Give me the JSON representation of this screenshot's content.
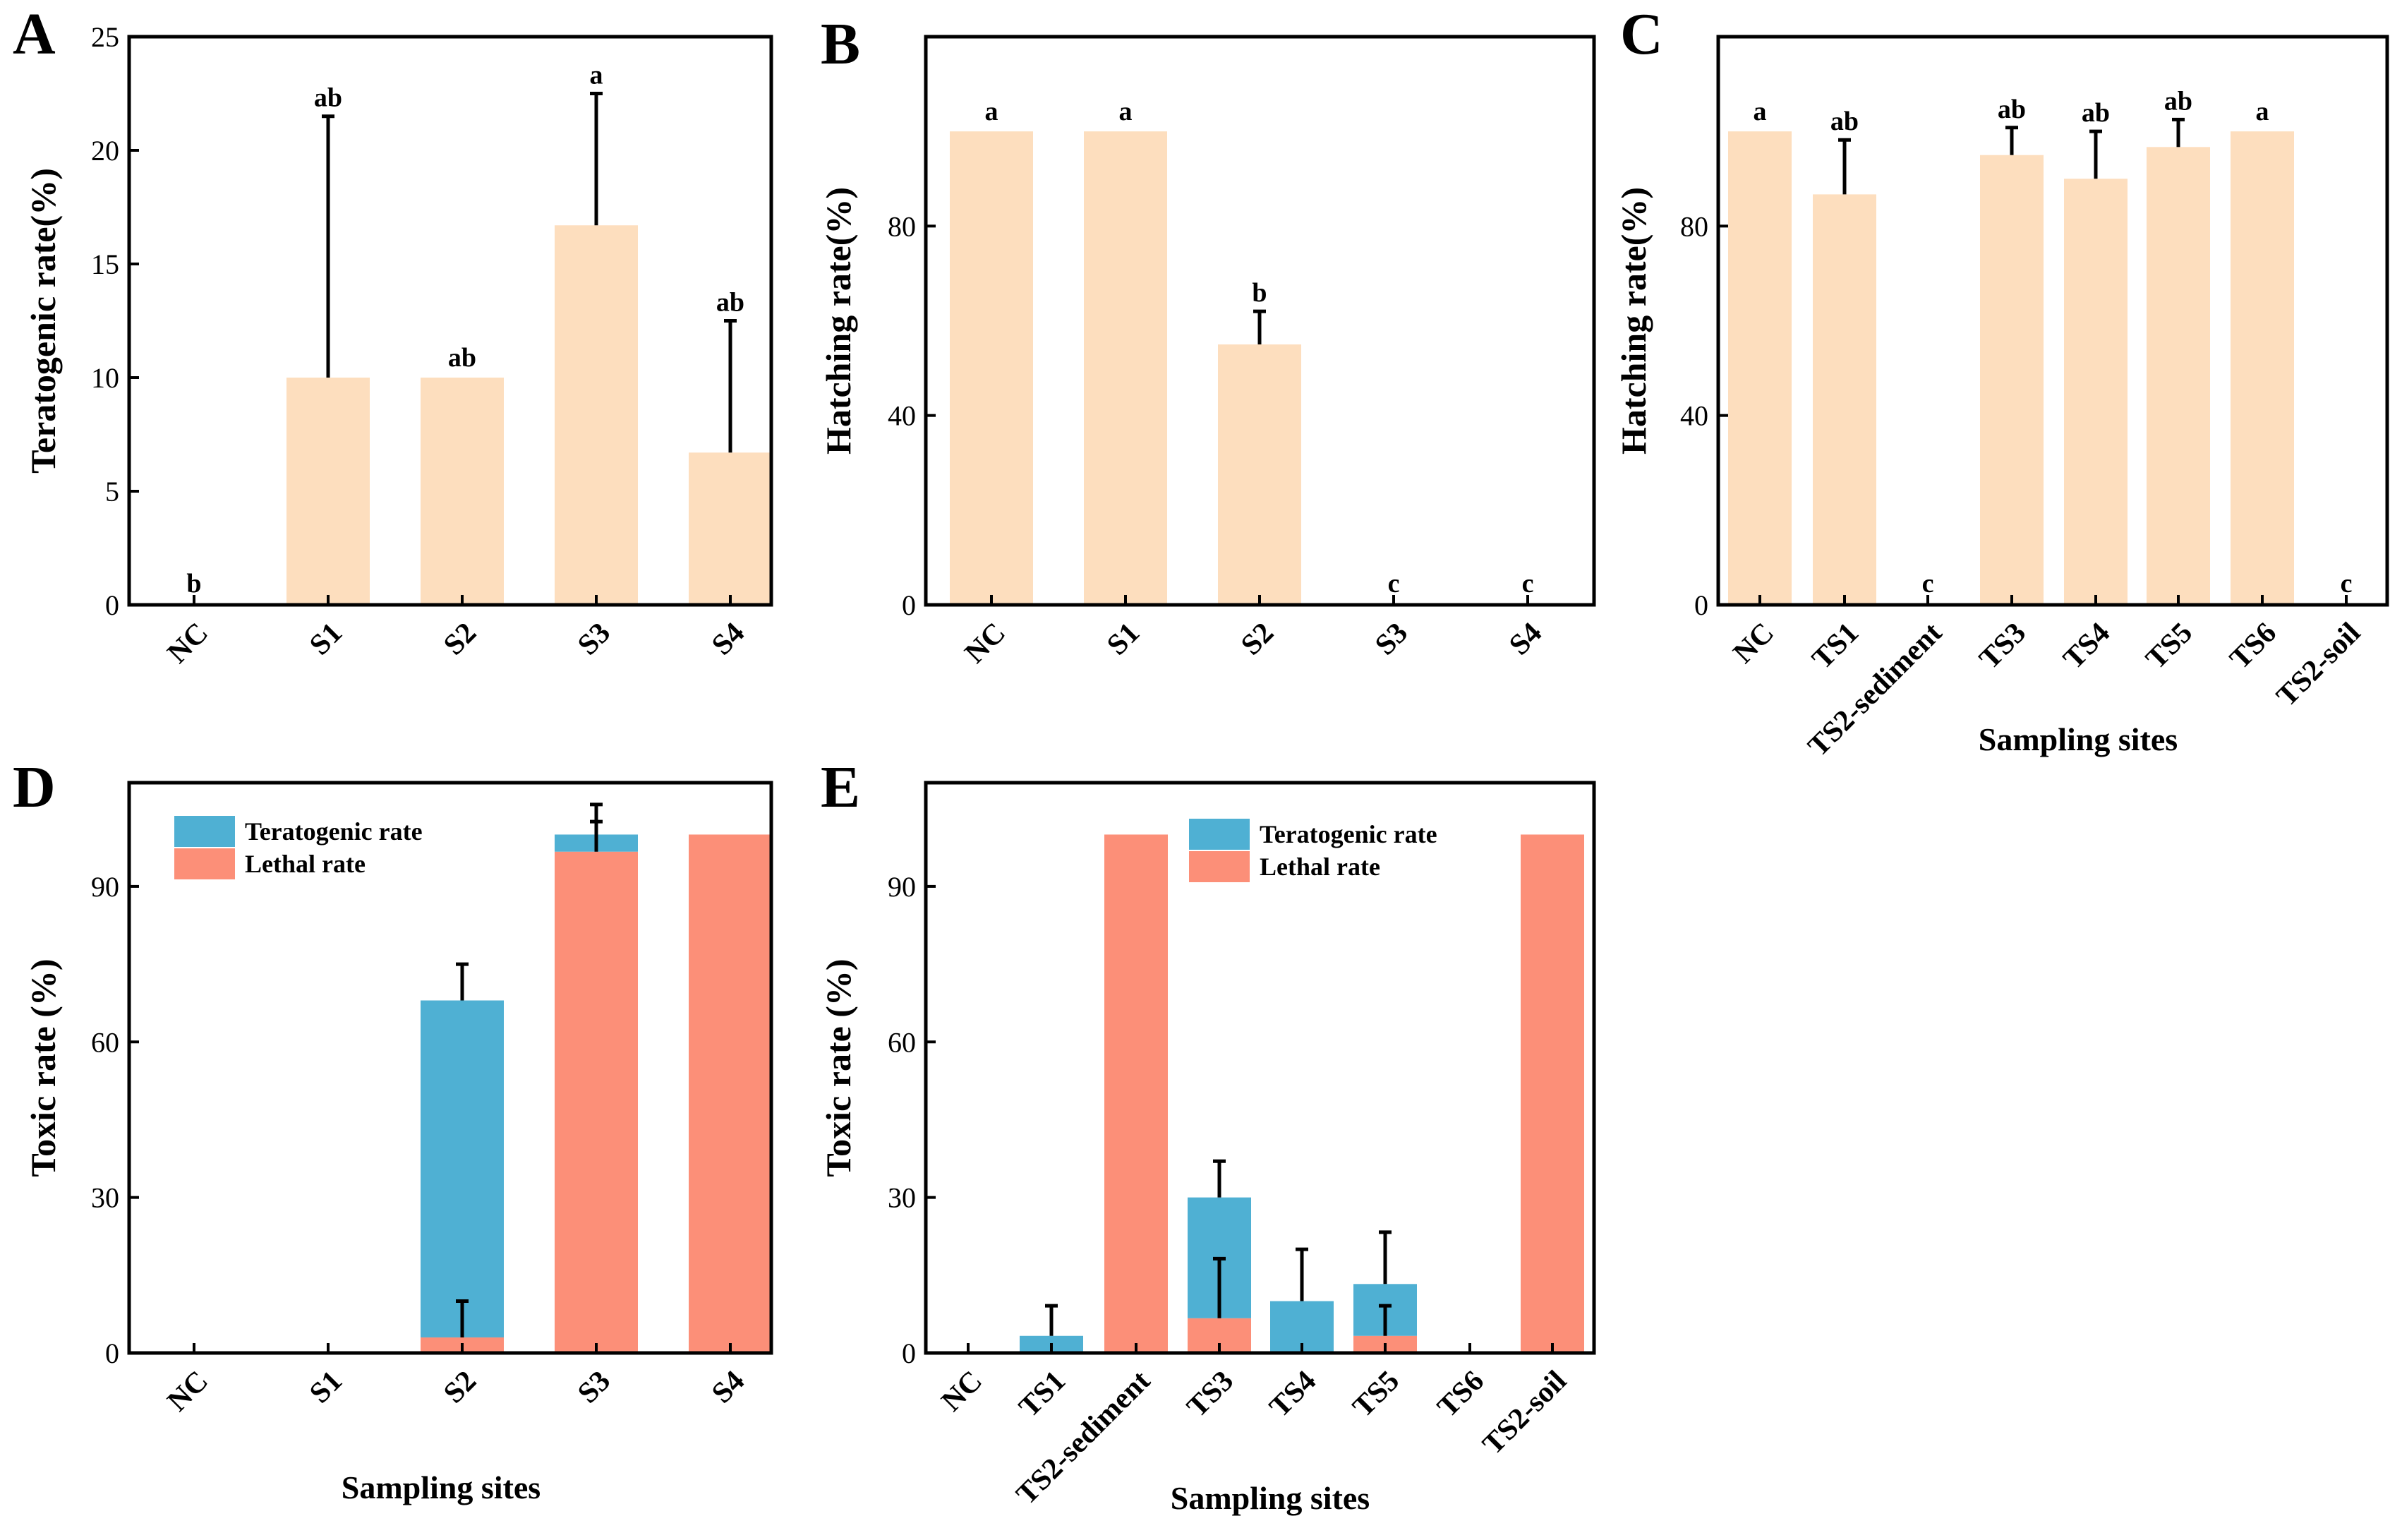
{
  "colors": {
    "beige": "#FDDEBE",
    "teratogenic": "#4FB0D3",
    "lethal": "#FC8F78",
    "axis": "#000000",
    "text": "#000000"
  },
  "chart_data": [
    {
      "panel": "A",
      "type": "bar",
      "categories": [
        "NC",
        "S1",
        "S2",
        "S3",
        "S4"
      ],
      "values": [
        0,
        10,
        10,
        16.7,
        6.7
      ],
      "errors": [
        0,
        11.5,
        0,
        5.8,
        5.8
      ],
      "sig_letters": [
        "b",
        "ab",
        "ab",
        "a",
        "ab"
      ],
      "ylabel": "Teratogenic rate(%)",
      "xlabel": "",
      "ylim": [
        0,
        25
      ],
      "yticks": [
        0,
        5,
        10,
        15,
        20,
        25
      ]
    },
    {
      "panel": "B",
      "type": "bar",
      "categories": [
        "NC",
        "S1",
        "S2",
        "S3",
        "S4"
      ],
      "values": [
        100,
        100,
        55,
        0,
        0
      ],
      "errors": [
        0,
        0,
        7,
        0,
        0
      ],
      "sig_letters": [
        "a",
        "a",
        "b",
        "c",
        "c"
      ],
      "ylabel": "Hatching rate(%)",
      "xlabel": "",
      "ylim": [
        0,
        120
      ],
      "yticks": [
        0,
        40,
        80
      ]
    },
    {
      "panel": "C",
      "type": "bar",
      "categories": [
        "NC",
        "TS1",
        "TS2-sediment",
        "TS3",
        "TS4",
        "TS5",
        "TS6",
        "TS2-soil"
      ],
      "values": [
        100,
        86.7,
        0,
        95,
        90,
        96.7,
        100,
        0
      ],
      "errors": [
        0,
        11.5,
        0,
        5.8,
        10,
        5.8,
        0,
        0
      ],
      "sig_letters": [
        "a",
        "ab",
        "c",
        "ab",
        "ab",
        "ab",
        "a",
        "c"
      ],
      "ylabel": "Hatching rate(%)",
      "xlabel": "Sampling sites",
      "ylim": [
        0,
        120
      ],
      "yticks": [
        0,
        40,
        80
      ]
    },
    {
      "panel": "D",
      "type": "bar",
      "stacked": true,
      "categories": [
        "NC",
        "S1",
        "S2",
        "S3",
        "S4"
      ],
      "series": [
        {
          "name": "Lethal rate",
          "values": [
            0,
            0,
            3,
            96.7,
            100
          ],
          "errors": [
            0,
            0,
            7,
            5.8,
            0
          ]
        },
        {
          "name": "Teratogenic rate",
          "values": [
            0,
            0,
            65,
            3.3,
            0
          ],
          "errors": [
            0,
            0,
            7,
            5.8,
            0
          ]
        }
      ],
      "legend": [
        "Teratogenic rate",
        "Lethal rate"
      ],
      "ylabel": "Toxic rate (%)",
      "xlabel": "Sampling sites",
      "ylim": [
        0,
        110
      ],
      "yticks": [
        0,
        30,
        60,
        90
      ]
    },
    {
      "panel": "E",
      "type": "bar",
      "stacked": true,
      "categories": [
        "NC",
        "TS1",
        "TS2-sediment",
        "TS3",
        "TS4",
        "TS5",
        "TS6",
        "TS2-soil"
      ],
      "series": [
        {
          "name": "Lethal rate",
          "values": [
            0,
            0,
            100,
            6.7,
            0,
            3.3,
            0,
            100
          ],
          "errors": [
            0,
            0,
            0,
            11.5,
            0,
            5.8,
            0,
            0
          ]
        },
        {
          "name": "Teratogenic rate",
          "values": [
            0,
            3.3,
            0,
            23.3,
            10,
            10,
            0,
            0
          ],
          "errors": [
            0,
            5.8,
            0,
            7,
            10,
            10,
            0,
            0
          ]
        }
      ],
      "legend": [
        "Teratogenic rate",
        "Lethal rate"
      ],
      "ylabel": "Toxic rate (%)",
      "xlabel": "Sampling sites",
      "ylim": [
        0,
        110
      ],
      "yticks": [
        0,
        30,
        60,
        90
      ]
    }
  ]
}
